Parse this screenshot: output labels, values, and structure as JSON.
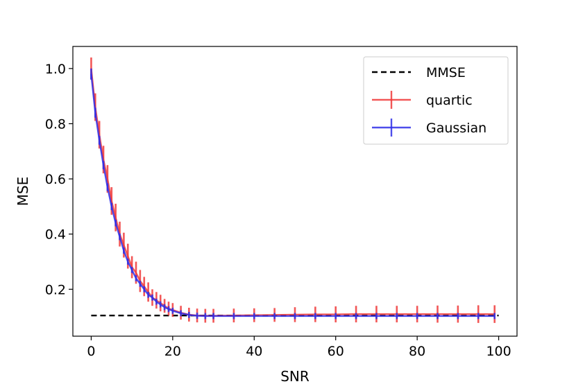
{
  "chart_data": {
    "type": "line",
    "title": "",
    "xlabel": "SNR",
    "ylabel": "MSE",
    "xlim": [
      -4.5,
      104.5
    ],
    "ylim": [
      0.03,
      1.08
    ],
    "xticks": [
      0,
      20,
      40,
      60,
      80,
      100
    ],
    "yticks": [
      0.2,
      0.4,
      0.6,
      0.8,
      1.0
    ],
    "xtick_labels": [
      "0",
      "20",
      "40",
      "60",
      "80",
      "100"
    ],
    "ytick_labels": [
      "0.2",
      "0.4",
      "0.6",
      "0.8",
      "1.0"
    ],
    "grid": false,
    "legend_position": "top-right",
    "series": [
      {
        "name": "MMSE",
        "style": "dashed",
        "color": "#000000",
        "x": [
          0,
          100
        ],
        "y": [
          0.105,
          0.105
        ]
      },
      {
        "name": "quartic",
        "style": "errorbar",
        "color": "#f03a3a",
        "x": [
          0,
          1,
          2,
          3,
          4,
          5,
          6,
          7,
          8,
          9,
          10,
          11,
          12,
          13,
          14,
          15,
          16,
          17,
          18,
          19,
          20,
          22,
          24,
          26,
          28,
          30,
          35,
          40,
          45,
          50,
          55,
          60,
          65,
          70,
          75,
          80,
          85,
          90,
          95,
          99
        ],
        "y": [
          1.0,
          0.86,
          0.76,
          0.67,
          0.6,
          0.52,
          0.46,
          0.4,
          0.36,
          0.32,
          0.28,
          0.26,
          0.23,
          0.21,
          0.19,
          0.17,
          0.16,
          0.15,
          0.14,
          0.13,
          0.125,
          0.115,
          0.108,
          0.105,
          0.104,
          0.104,
          0.105,
          0.106,
          0.107,
          0.108,
          0.109,
          0.109,
          0.11,
          0.11,
          0.11,
          0.11,
          0.11,
          0.11,
          0.11,
          0.11
        ],
        "err": [
          0.04,
          0.05,
          0.05,
          0.05,
          0.05,
          0.05,
          0.05,
          0.045,
          0.045,
          0.045,
          0.04,
          0.04,
          0.04,
          0.035,
          0.035,
          0.03,
          0.03,
          0.03,
          0.025,
          0.025,
          0.025,
          0.025,
          0.025,
          0.025,
          0.025,
          0.025,
          0.025,
          0.025,
          0.025,
          0.027,
          0.028,
          0.029,
          0.03,
          0.03,
          0.03,
          0.03,
          0.031,
          0.031,
          0.032,
          0.032
        ]
      },
      {
        "name": "Gaussian",
        "style": "errorbar",
        "color": "#2f2fe8",
        "x": [
          0,
          1,
          2,
          3,
          4,
          5,
          6,
          7,
          8,
          9,
          10,
          11,
          12,
          13,
          14,
          15,
          16,
          17,
          18,
          19,
          20,
          22,
          24,
          26,
          28,
          30,
          35,
          40,
          45,
          50,
          55,
          60,
          65,
          70,
          75,
          80,
          85,
          90,
          95,
          99
        ],
        "y": [
          0.98,
          0.84,
          0.74,
          0.65,
          0.57,
          0.5,
          0.44,
          0.39,
          0.34,
          0.3,
          0.27,
          0.24,
          0.22,
          0.2,
          0.18,
          0.17,
          0.155,
          0.145,
          0.135,
          0.128,
          0.122,
          0.113,
          0.107,
          0.104,
          0.103,
          0.103,
          0.103,
          0.103,
          0.103,
          0.103,
          0.103,
          0.103,
          0.103,
          0.103,
          0.103,
          0.103,
          0.103,
          0.103,
          0.103,
          0.103
        ],
        "err": [
          0.02,
          0.018,
          0.016,
          0.015,
          0.014,
          0.013,
          0.012,
          0.012,
          0.011,
          0.011,
          0.011,
          0.011,
          0.011,
          0.011,
          0.011,
          0.011,
          0.011,
          0.011,
          0.011,
          0.011,
          0.011,
          0.011,
          0.011,
          0.011,
          0.011,
          0.011,
          0.011,
          0.011,
          0.011,
          0.011,
          0.011,
          0.011,
          0.011,
          0.011,
          0.011,
          0.011,
          0.011,
          0.011,
          0.011,
          0.011
        ]
      }
    ]
  }
}
